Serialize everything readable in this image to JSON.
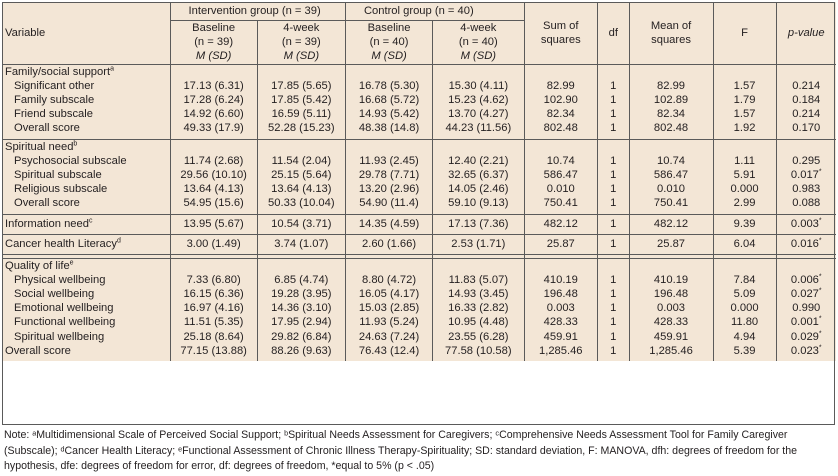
{
  "header": {
    "variable": "Variable",
    "intervention_group": "Intervention group (n = 39)",
    "control_group": "Control group (n = 40)",
    "cols": [
      {
        "l1": "Baseline",
        "l2": "(n = 39)",
        "l3": "M (SD)"
      },
      {
        "l1": "4-week",
        "l2": "(n = 39)",
        "l3": "M (SD)"
      },
      {
        "l1": "Baseline",
        "l2": "(n = 40)",
        "l3": "M (SD)"
      },
      {
        "l1": "4-week",
        "l2": "(n = 40)",
        "l3": "M (SD)"
      }
    ],
    "sum_sq": "Sum of squares",
    "df": "df",
    "mean_sq": "Mean of squares",
    "f": "F",
    "p": "p-value"
  },
  "groups": [
    {
      "title": "Family/social support",
      "sup": "a",
      "rows": [
        {
          "label": "Significant other",
          "ib": "17.13 (6.31)",
          "i4": "17.85 (5.65)",
          "cb": "16.78 (5.30)",
          "c4": "15.30 (4.11)",
          "ss": "82.99",
          "df": "1",
          "ms": "82.99",
          "f": "1.57",
          "p": "0.214",
          "star": ""
        },
        {
          "label": "Family subscale",
          "ib": "17.28 (6.24)",
          "i4": "17.85 (5.42)",
          "cb": "16.68 (5.72)",
          "c4": "15.23 (4.62)",
          "ss": "102.90",
          "df": "1",
          "ms": "102.89",
          "f": "1.79",
          "p": "0.184",
          "star": ""
        },
        {
          "label": "Friend subscale",
          "ib": "14.92 (6.60)",
          "i4": "16.59 (5.11)",
          "cb": "14.93 (5.42)",
          "c4": "13.70 (4.27)",
          "ss": "82.34",
          "df": "1",
          "ms": "82.34",
          "f": "1.57",
          "p": "0.214",
          "star": ""
        },
        {
          "label": "Overall score",
          "ib": "49.33 (17.9)",
          "i4": "52.28 (15.23)",
          "cb": "48.38 (14.8)",
          "c4": "44.23 (11.56)",
          "ss": "802.48",
          "df": "1",
          "ms": "802.48",
          "f": "1.92",
          "p": "0.170",
          "star": ""
        }
      ]
    },
    {
      "title": "Spiritual need",
      "sup": "b",
      "rows": [
        {
          "label": "Psychosocial subscale",
          "ib": "11.74 (2.68)",
          "i4": "11.54 (2.04)",
          "cb": "11.93 (2.45)",
          "c4": "12.40 (2.21)",
          "ss": "10.74",
          "df": "1",
          "ms": "10.74",
          "f": "1.11",
          "p": "0.295",
          "star": ""
        },
        {
          "label": "Spiritual subscale",
          "ib": "29.56 (10.10)",
          "i4": "25.15 (5.64)",
          "cb": "29.78 (7.71)",
          "c4": "32.65 (6.37)",
          "ss": "586.47",
          "df": "1",
          "ms": "586.47",
          "f": "5.91",
          "p": "0.017",
          "star": "*"
        },
        {
          "label": "Religious subscale",
          "ib": "13.64 (4.13)",
          "i4": "13.64 (4.13)",
          "cb": "13.20 (2.96)",
          "c4": "14.05 (2.46)",
          "ss": "0.010",
          "df": "1",
          "ms": "0.010",
          "f": "0.000",
          "p": "0.983",
          "star": ""
        },
        {
          "label": "Overall score",
          "ib": "54.95 (15.6)",
          "i4": "50.33 (10.04)",
          "cb": "54.90 (11.4)",
          "c4": "59.10 (9.13)",
          "ss": "750.41",
          "df": "1",
          "ms": "750.41",
          "f": "2.99",
          "p": "0.088",
          "star": ""
        }
      ]
    }
  ],
  "singles": [
    {
      "label": "Information need",
      "sup": "c",
      "ib": "13.95 (5.67)",
      "i4": "10.54 (3.71)",
      "cb": "14.35 (4.59)",
      "c4": "17.13 (7.36)",
      "ss": "482.12",
      "df": "1",
      "ms": "482.12",
      "f": "9.39",
      "p": "0.003",
      "star": "*"
    },
    {
      "label": "Cancer health Literacy",
      "sup": "d",
      "ib": "3.00 (1.49)",
      "i4": "3.74 (1.07)",
      "cb": "2.60 (1.66)",
      "c4": "2.53 (1.71)",
      "ss": "25.87",
      "df": "1",
      "ms": "25.87",
      "f": "6.04",
      "p": "0.016",
      "star": "*"
    }
  ],
  "qol": {
    "title": "Quality of life",
    "sup": "e",
    "rows": [
      {
        "label": "Physical wellbeing",
        "ib": "7.33 (6.80)",
        "i4": "6.85 (4.74)",
        "cb": "8.80 (4.72)",
        "c4": "11.83 (5.07)",
        "ss": "410.19",
        "df": "1",
        "ms": "410.19",
        "f": "7.84",
        "p": "0.006",
        "star": "*"
      },
      {
        "label": "Social wellbeing",
        "ib": "16.15 (6.36)",
        "i4": "19.28 (3.95)",
        "cb": "16.05 (4.17)",
        "c4": "14.93 (3.45)",
        "ss": "196.48",
        "df": "1",
        "ms": "196.48",
        "f": "5.09",
        "p": "0.027",
        "star": "*"
      },
      {
        "label": "Emotional wellbeing",
        "ib": "16.97 (4.16)",
        "i4": "14.36 (3.10)",
        "cb": "15.03 (2.85)",
        "c4": "16.33 (2.82)",
        "ss": "0.003",
        "df": "1",
        "ms": "0.003",
        "f": "0.000",
        "p": "0.990",
        "star": ""
      },
      {
        "label": "Functional wellbeing",
        "ib": "11.51 (5.35)",
        "i4": "17.95 (2.94)",
        "cb": "11.93 (5.24)",
        "c4": "10.95 (4.48)",
        "ss": "428.33",
        "df": "1",
        "ms": "428.33",
        "f": "11.80",
        "p": "0.001",
        "star": "*"
      },
      {
        "label": "Spiritual wellbeing",
        "ib": "25.18 (8.64)",
        "i4": "29.82 (6.84)",
        "cb": "24.63 (7.24)",
        "c4": "23.55 (6.28)",
        "ss": "459.91",
        "df": "1",
        "ms": "459.91",
        "f": "4.94",
        "p": "0.029",
        "star": "*"
      }
    ],
    "overall": {
      "label": "Overall score",
      "ib": "77.15 (13.88)",
      "i4": "88.26 (9.63)",
      "cb": "76.43 (12.4)",
      "c4": "77.58 (10.58)",
      "ss": "1,285.46",
      "df": "1",
      "ms": "1,285.46",
      "f": "5.39",
      "p": "0.023",
      "star": "*"
    }
  },
  "note": "Note: ᵃMultidimensional Scale of Perceived Social Support; ᵇSpiritual Needs Assessment for Caregivers; ᶜComprehensive Needs Assessment Tool for Family Caregiver (Subscale); ᵈCancer Health Literacy; ᵉFunctional Assessment of Chronic Illness Therapy-Spirituality; SD: standard deviation, F: MANOVA, dfh: degrees of freedom for the hypothesis, dfe: degrees of freedom for error, df: degrees of freedom, *equal to 5% (p < .05)"
}
